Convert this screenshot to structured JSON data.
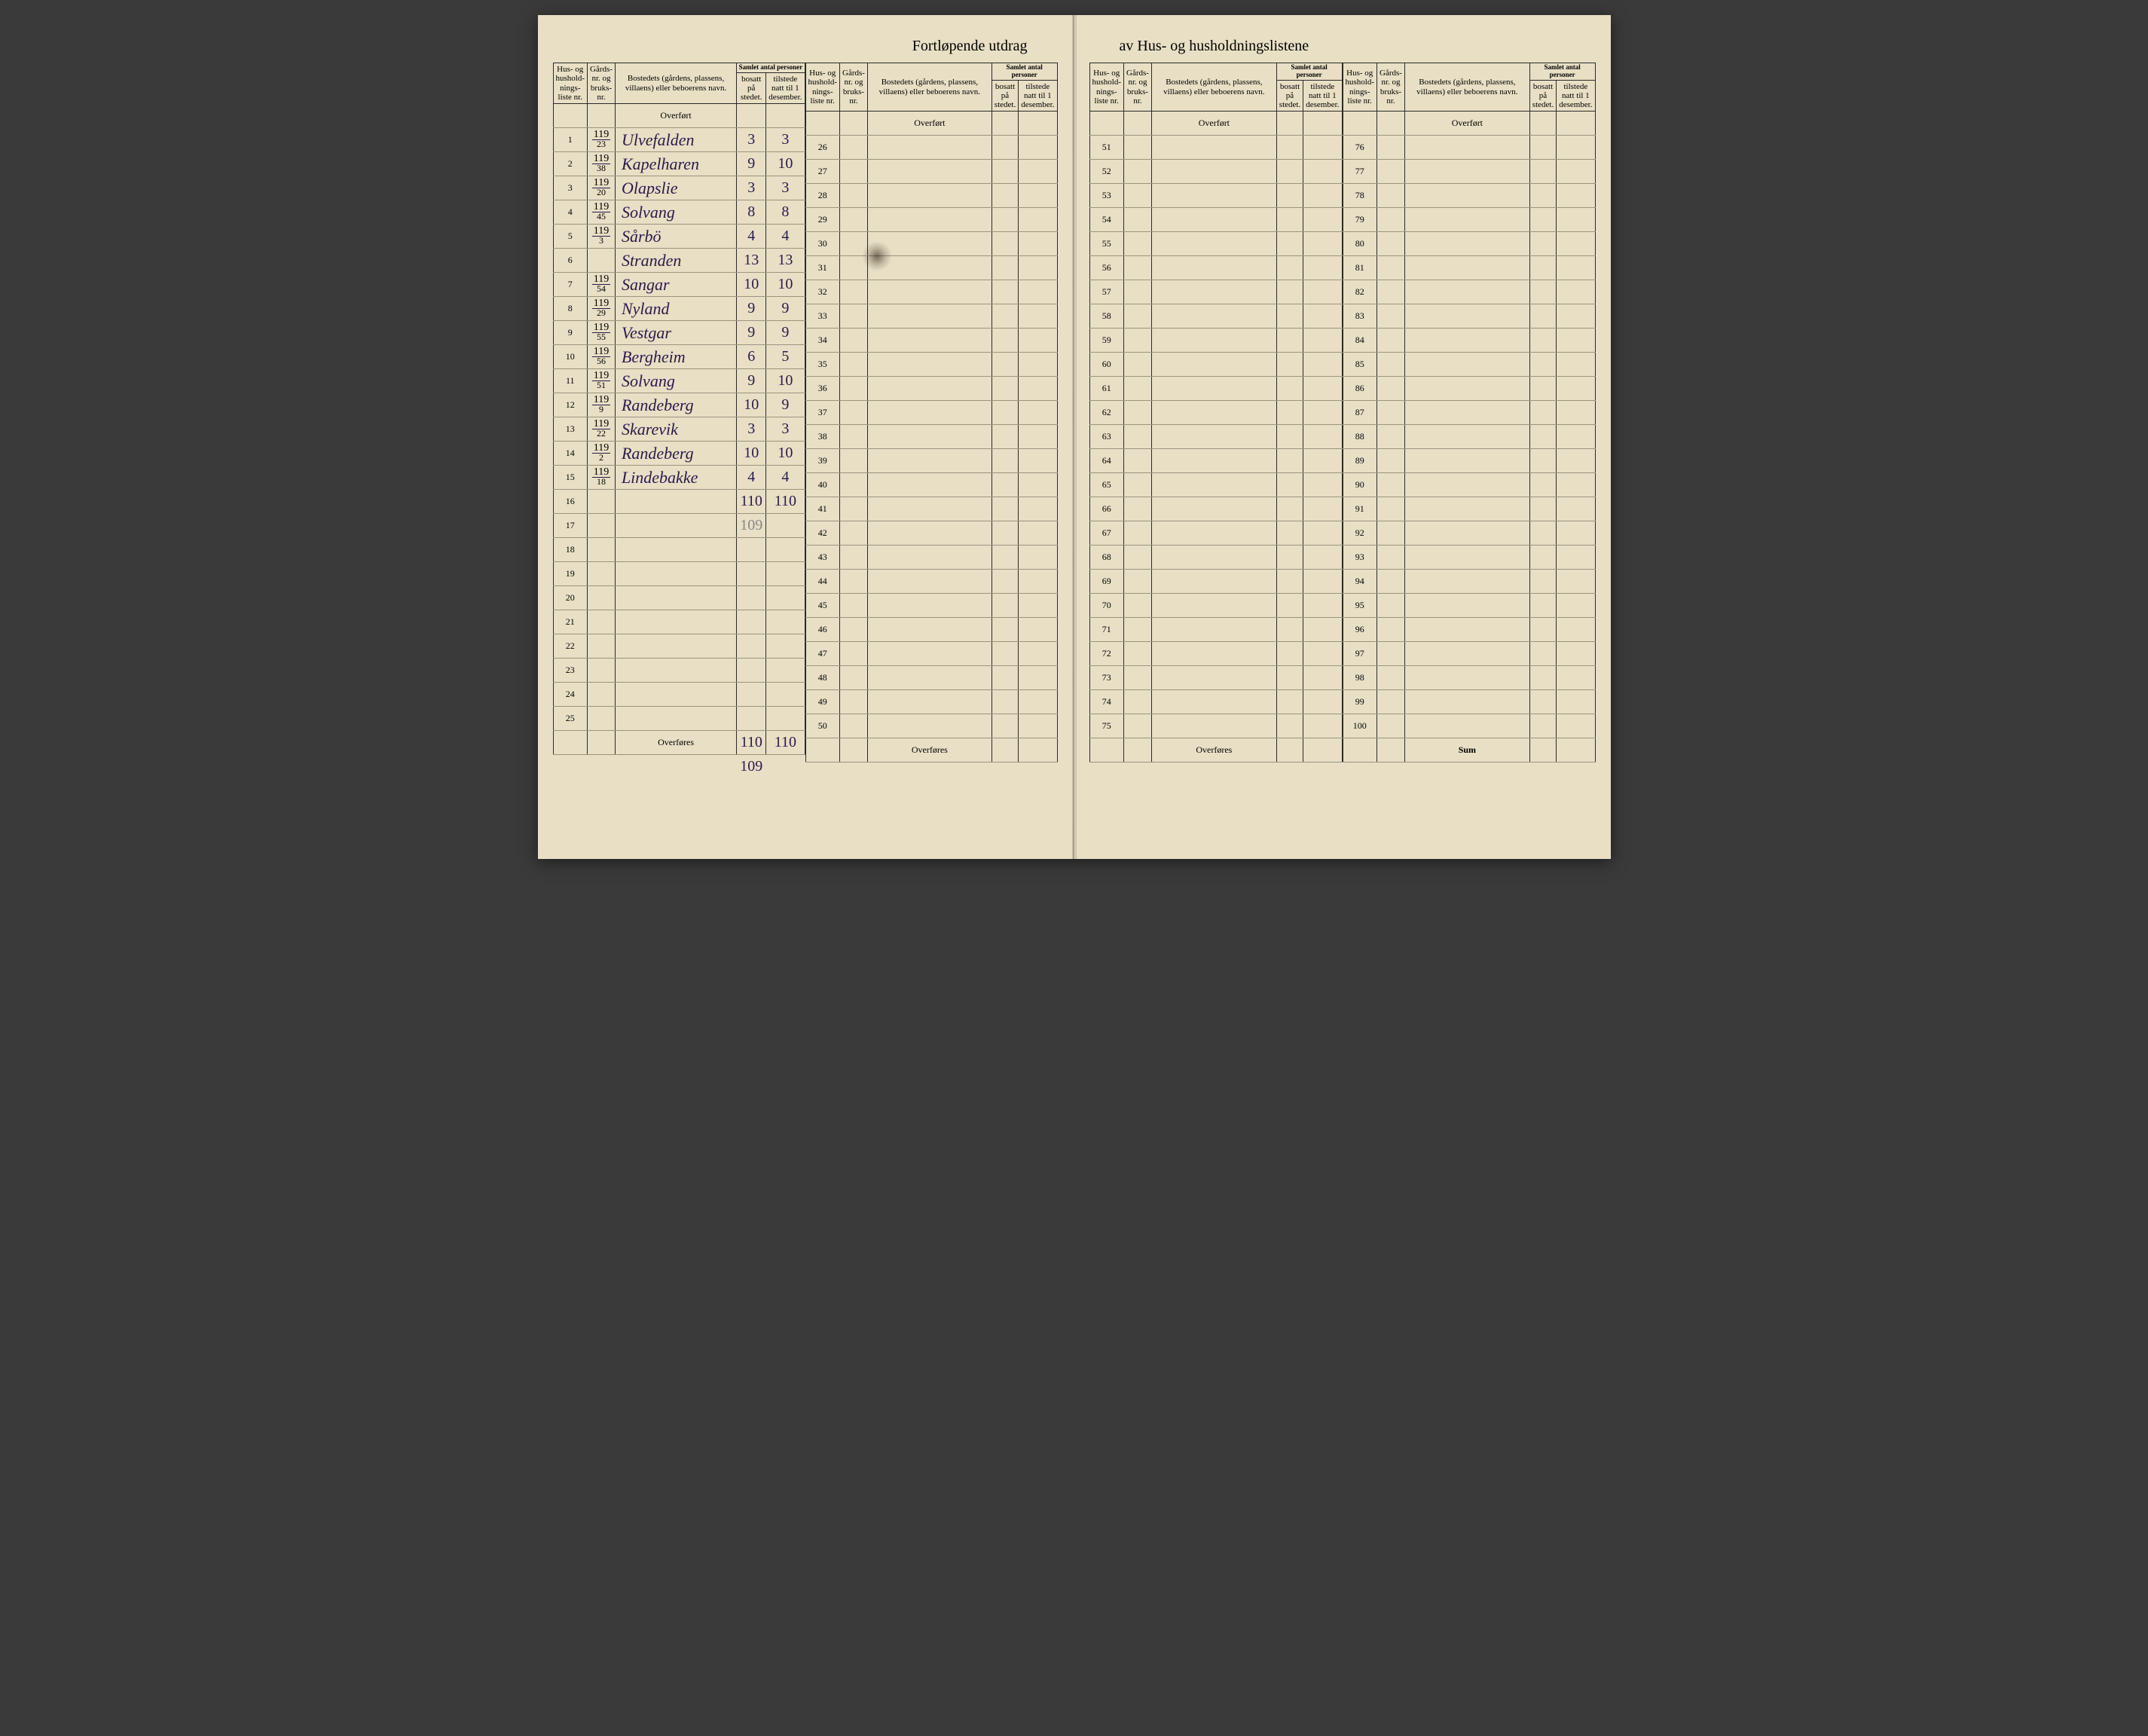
{
  "title_left": "Fortløpende utdrag",
  "title_right": "av Hus- og husholdningslistene",
  "headers": {
    "liste": "Hus- og hushold-nings-liste nr.",
    "gnr": "Gårds-nr. og bruks-nr.",
    "bosted": "Bostedets (gårdens, plassens, villaens) eller beboerens navn.",
    "samlet": "Samlet antal personer",
    "bosatt": "bosatt på stedet.",
    "tilstede": "tilstede natt til 1 desember."
  },
  "overfort": "Overført",
  "overfores": "Overføres",
  "sum": "Sum",
  "rows_block1": [
    {
      "n": "1",
      "g_top": "119",
      "g_bot": "23",
      "name": "Ulvefalden",
      "b": "3",
      "t": "3"
    },
    {
      "n": "2",
      "g_top": "119",
      "g_bot": "38",
      "name": "Kapelharen",
      "b": "9",
      "t": "10"
    },
    {
      "n": "3",
      "g_top": "119",
      "g_bot": "20",
      "name": "Olapslie",
      "b": "3",
      "t": "3"
    },
    {
      "n": "4",
      "g_top": "119",
      "g_bot": "45",
      "name": "Solvang",
      "b": "8",
      "t": "8"
    },
    {
      "n": "5",
      "g_top": "119",
      "g_bot": "3",
      "name": "Sårbö",
      "b": "4",
      "t": "4"
    },
    {
      "n": "6",
      "g_top": "",
      "g_bot": "",
      "name": "Stranden",
      "b": "13",
      "t": "13"
    },
    {
      "n": "7",
      "g_top": "119",
      "g_bot": "54",
      "name": "Sangar",
      "b": "10",
      "t": "10"
    },
    {
      "n": "8",
      "g_top": "119",
      "g_bot": "29",
      "name": "Nyland",
      "b": "9",
      "t": "9"
    },
    {
      "n": "9",
      "g_top": "119",
      "g_bot": "55",
      "name": "Vestgar",
      "b": "9",
      "t": "9"
    },
    {
      "n": "10",
      "g_top": "119",
      "g_bot": "56",
      "name": "Bergheim",
      "b": "6",
      "t": "5"
    },
    {
      "n": "11",
      "g_top": "119",
      "g_bot": "51",
      "name": "Solvang",
      "b": "9",
      "t": "10"
    },
    {
      "n": "12",
      "g_top": "119",
      "g_bot": "9",
      "name": "Randeberg",
      "b": "10",
      "t": "9"
    },
    {
      "n": "13",
      "g_top": "119",
      "g_bot": "22",
      "name": "Skarevik",
      "b": "3",
      "t": "3"
    },
    {
      "n": "14",
      "g_top": "119",
      "g_bot": "2",
      "name": "Randeberg",
      "b": "10",
      "t": "10"
    },
    {
      "n": "15",
      "g_top": "119",
      "g_bot": "18",
      "name": "Lindebakke",
      "b": "4",
      "t": "4"
    },
    {
      "n": "16",
      "g_top": "",
      "g_bot": "",
      "name": "",
      "b": "110",
      "t": "110"
    },
    {
      "n": "17",
      "g_top": "",
      "g_bot": "",
      "name": "",
      "b": "",
      "t": ""
    },
    {
      "n": "18",
      "g_top": "",
      "g_bot": "",
      "name": "",
      "b": "",
      "t": ""
    },
    {
      "n": "19",
      "g_top": "",
      "g_bot": "",
      "name": "",
      "b": "",
      "t": ""
    },
    {
      "n": "20",
      "g_top": "",
      "g_bot": "",
      "name": "",
      "b": "",
      "t": ""
    },
    {
      "n": "21",
      "g_top": "",
      "g_bot": "",
      "name": "",
      "b": "",
      "t": ""
    },
    {
      "n": "22",
      "g_top": "",
      "g_bot": "",
      "name": "",
      "b": "",
      "t": ""
    },
    {
      "n": "23",
      "g_top": "",
      "g_bot": "",
      "name": "",
      "b": "",
      "t": ""
    },
    {
      "n": "24",
      "g_top": "",
      "g_bot": "",
      "name": "",
      "b": "",
      "t": ""
    },
    {
      "n": "25",
      "g_top": "",
      "g_bot": "",
      "name": "",
      "b": "",
      "t": ""
    }
  ],
  "pencil_17": "109",
  "footer_left_b": "110",
  "footer_left_t": "110",
  "footer_pencil": "109",
  "blocks_empty": [
    {
      "start": 26,
      "end": 50
    },
    {
      "start": 51,
      "end": 75
    },
    {
      "start": 76,
      "end": 100
    }
  ],
  "colors": {
    "paper": "#e8dfc5",
    "ink": "#2a2a2a",
    "handwriting": "#2a1a4a",
    "rule": "#9a9480",
    "pencil": "#888888"
  }
}
